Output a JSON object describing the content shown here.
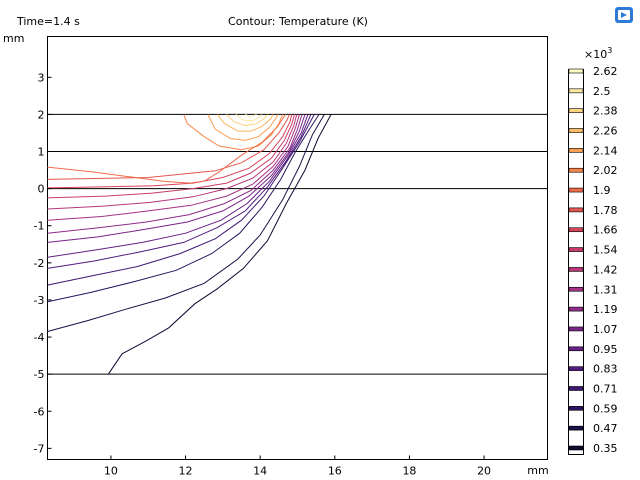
{
  "header": {
    "time_label": "Time=1.4 s",
    "title": "Contour: Temperature (K)"
  },
  "chart_data": {
    "type": "contour",
    "title": "Contour: Temperature (K)",
    "xlabel": "mm",
    "ylabel": "mm",
    "xlim": [
      8.3,
      21.7
    ],
    "ylim": [
      -7.3,
      4.1
    ],
    "x_ticks": [
      "10",
      "12",
      "14",
      "16",
      "18",
      "20"
    ],
    "y_ticks": [
      "3",
      "2",
      "1",
      "0",
      "-1",
      "-2",
      "-3",
      "-4",
      "-5",
      "-6",
      "-7"
    ],
    "boundary_lines_y": [
      2,
      1,
      0,
      -5
    ],
    "colorbar": {
      "exponent_label": "×10",
      "exponent_power": "3",
      "levels": [
        2.62,
        2.5,
        2.38,
        2.26,
        2.14,
        2.02,
        1.9,
        1.78,
        1.66,
        1.54,
        1.42,
        1.31,
        1.19,
        1.07,
        0.95,
        0.83,
        0.71,
        0.59,
        0.47,
        0.35
      ],
      "level_labels": [
        "2.62",
        "2.5",
        "2.38",
        "2.26",
        "2.14",
        "2.02",
        "1.9",
        "1.78",
        "1.66",
        "1.54",
        "1.42",
        "1.31",
        "1.19",
        "1.07",
        "0.95",
        "0.83",
        "0.71",
        "0.59",
        "0.47",
        "0.35"
      ],
      "colors": [
        "#fcfdbf",
        "#fde9a0",
        "#fdd27f",
        "#fcb866",
        "#fb9f52",
        "#f8864a",
        "#f06c4a",
        "#e45751",
        "#d6455a",
        "#c83d68",
        "#b73779",
        "#a43184",
        "#8f2a8a",
        "#7a2489",
        "#661f85",
        "#521b80",
        "#3e1874",
        "#2b1560",
        "#1a1045",
        "#0d0a30"
      ]
    },
    "series": [
      {
        "level": 0.35,
        "points": [
          [
            9.93,
            -5.0
          ],
          [
            10.3,
            -4.45
          ],
          [
            10.95,
            -4.1
          ],
          [
            11.55,
            -3.75
          ],
          [
            12.25,
            -3.1
          ],
          [
            12.85,
            -2.7
          ],
          [
            13.55,
            -2.15
          ],
          [
            14.2,
            -1.4
          ],
          [
            14.7,
            -0.4
          ],
          [
            15.2,
            0.5
          ],
          [
            15.55,
            1.35
          ],
          [
            15.9,
            2.0
          ]
        ]
      },
      {
        "level": 0.47,
        "points": [
          [
            8.3,
            -3.85
          ],
          [
            9.4,
            -3.55
          ],
          [
            10.4,
            -3.25
          ],
          [
            11.45,
            -2.95
          ],
          [
            12.5,
            -2.55
          ],
          [
            13.4,
            -1.9
          ],
          [
            14.0,
            -1.25
          ],
          [
            14.6,
            -0.3
          ],
          [
            15.05,
            0.6
          ],
          [
            15.4,
            1.45
          ],
          [
            15.72,
            2.0
          ]
        ]
      },
      {
        "level": 0.59,
        "points": [
          [
            8.3,
            -3.05
          ],
          [
            9.45,
            -2.8
          ],
          [
            10.65,
            -2.5
          ],
          [
            11.75,
            -2.2
          ],
          [
            12.7,
            -1.75
          ],
          [
            13.45,
            -1.2
          ],
          [
            14.05,
            -0.5
          ],
          [
            14.55,
            0.25
          ],
          [
            14.95,
            1.0
          ],
          [
            15.35,
            1.65
          ],
          [
            15.58,
            2.0
          ]
        ]
      },
      {
        "level": 0.71,
        "points": [
          [
            8.3,
            -2.6
          ],
          [
            9.5,
            -2.35
          ],
          [
            10.7,
            -2.1
          ],
          [
            11.85,
            -1.75
          ],
          [
            12.8,
            -1.35
          ],
          [
            13.5,
            -0.85
          ],
          [
            14.1,
            -0.2
          ],
          [
            14.6,
            0.55
          ],
          [
            15.05,
            1.25
          ],
          [
            15.45,
            2.0
          ]
        ]
      },
      {
        "level": 0.83,
        "points": [
          [
            8.3,
            -2.15
          ],
          [
            9.55,
            -1.95
          ],
          [
            10.8,
            -1.7
          ],
          [
            11.95,
            -1.45
          ],
          [
            12.85,
            -1.05
          ],
          [
            13.6,
            -0.6
          ],
          [
            14.2,
            0.05
          ],
          [
            14.7,
            0.75
          ],
          [
            15.1,
            1.4
          ],
          [
            15.36,
            2.0
          ]
        ]
      },
      {
        "level": 0.95,
        "points": [
          [
            8.3,
            -1.85
          ],
          [
            9.6,
            -1.65
          ],
          [
            10.85,
            -1.45
          ],
          [
            12.0,
            -1.2
          ],
          [
            12.95,
            -0.85
          ],
          [
            13.65,
            -0.4
          ],
          [
            14.25,
            0.2
          ],
          [
            14.75,
            0.9
          ],
          [
            15.1,
            1.5
          ],
          [
            15.28,
            2.0
          ]
        ]
      },
      {
        "level": 1.07,
        "points": [
          [
            8.3,
            -1.45
          ],
          [
            9.65,
            -1.3
          ],
          [
            10.9,
            -1.1
          ],
          [
            12.05,
            -0.9
          ],
          [
            13.0,
            -0.6
          ],
          [
            13.7,
            -0.2
          ],
          [
            14.3,
            0.35
          ],
          [
            14.78,
            1.0
          ],
          [
            15.05,
            1.55
          ],
          [
            15.2,
            2.0
          ]
        ]
      },
      {
        "level": 1.19,
        "points": [
          [
            8.3,
            -1.2
          ],
          [
            9.7,
            -1.05
          ],
          [
            10.95,
            -0.9
          ],
          [
            12.1,
            -0.7
          ],
          [
            13.05,
            -0.4
          ],
          [
            13.75,
            -0.05
          ],
          [
            14.35,
            0.5
          ],
          [
            14.8,
            1.1
          ],
          [
            15.0,
            1.6
          ],
          [
            15.12,
            2.0
          ]
        ]
      },
      {
        "level": 1.31,
        "points": [
          [
            8.3,
            -0.85
          ],
          [
            9.75,
            -0.75
          ],
          [
            11.0,
            -0.6
          ],
          [
            12.15,
            -0.45
          ],
          [
            13.1,
            -0.2
          ],
          [
            13.8,
            0.12
          ],
          [
            14.35,
            0.6
          ],
          [
            14.75,
            1.15
          ],
          [
            14.95,
            1.65
          ],
          [
            15.05,
            2.0
          ]
        ]
      },
      {
        "level": 1.42,
        "points": [
          [
            8.3,
            -0.55
          ],
          [
            9.8,
            -0.47
          ],
          [
            11.05,
            -0.37
          ],
          [
            12.2,
            -0.22
          ],
          [
            13.1,
            0.0
          ],
          [
            13.8,
            0.28
          ],
          [
            14.35,
            0.72
          ],
          [
            14.7,
            1.22
          ],
          [
            14.9,
            1.7
          ],
          [
            14.98,
            2.0
          ]
        ]
      },
      {
        "level": 1.54,
        "points": [
          [
            8.3,
            -0.25
          ],
          [
            9.85,
            -0.2
          ],
          [
            11.1,
            -0.12
          ],
          [
            12.2,
            0.0
          ],
          [
            13.1,
            0.15
          ],
          [
            13.75,
            0.42
          ],
          [
            14.3,
            0.82
          ],
          [
            14.65,
            1.3
          ],
          [
            14.85,
            1.75
          ],
          [
            14.92,
            2.0
          ]
        ]
      },
      {
        "level": 1.66,
        "points": [
          [
            8.3,
            0.02
          ],
          [
            9.9,
            0.05
          ],
          [
            11.15,
            0.08
          ],
          [
            12.2,
            0.15
          ],
          [
            13.0,
            0.3
          ],
          [
            13.7,
            0.55
          ],
          [
            14.25,
            0.95
          ],
          [
            14.6,
            1.4
          ],
          [
            14.8,
            1.8
          ],
          [
            14.85,
            2.0
          ]
        ]
      },
      {
        "level": 1.78,
        "points": [
          [
            8.3,
            0.25
          ],
          [
            9.9,
            0.28
          ],
          [
            11.0,
            0.3
          ],
          [
            12.0,
            0.4
          ],
          [
            12.8,
            0.48
          ],
          [
            13.5,
            0.7
          ],
          [
            14.1,
            1.05
          ],
          [
            14.5,
            1.5
          ],
          [
            14.72,
            1.85
          ],
          [
            14.78,
            2.0
          ]
        ]
      },
      {
        "level": 1.9,
        "points": [
          [
            8.3,
            0.58
          ],
          [
            9.5,
            0.45
          ],
          [
            10.5,
            0.32
          ],
          [
            11.4,
            0.2
          ],
          [
            12.1,
            0.15
          ],
          [
            12.5,
            0.2
          ],
          [
            12.9,
            0.45
          ],
          [
            13.5,
            0.9
          ],
          [
            14.05,
            1.25
          ],
          [
            14.45,
            1.65
          ],
          [
            14.68,
            2.0
          ]
        ]
      },
      {
        "level": 2.02,
        "points": [
          [
            11.95,
            2.0
          ],
          [
            12.05,
            1.75
          ],
          [
            12.5,
            1.4
          ],
          [
            12.9,
            1.15
          ],
          [
            13.5,
            1.05
          ],
          [
            13.95,
            1.15
          ],
          [
            14.3,
            1.45
          ],
          [
            14.5,
            1.75
          ],
          [
            14.6,
            2.0
          ]
        ]
      },
      {
        "level": 2.14,
        "points": [
          [
            12.6,
            2.0
          ],
          [
            12.8,
            1.6
          ],
          [
            13.2,
            1.35
          ],
          [
            13.6,
            1.3
          ],
          [
            13.95,
            1.4
          ],
          [
            14.25,
            1.65
          ],
          [
            14.42,
            1.9
          ],
          [
            14.48,
            2.0
          ]
        ]
      },
      {
        "level": 2.26,
        "points": [
          [
            12.85,
            2.0
          ],
          [
            13.05,
            1.75
          ],
          [
            13.4,
            1.55
          ],
          [
            13.75,
            1.55
          ],
          [
            14.05,
            1.68
          ],
          [
            14.28,
            1.88
          ],
          [
            14.35,
            2.0
          ]
        ]
      },
      {
        "level": 2.38,
        "points": [
          [
            13.1,
            2.0
          ],
          [
            13.3,
            1.8
          ],
          [
            13.6,
            1.7
          ],
          [
            13.9,
            1.75
          ],
          [
            14.1,
            1.88
          ],
          [
            14.2,
            2.0
          ]
        ]
      },
      {
        "level": 2.5,
        "points": [
          [
            13.35,
            2.0
          ],
          [
            13.55,
            1.85
          ],
          [
            13.8,
            1.83
          ],
          [
            13.98,
            1.92
          ],
          [
            14.05,
            2.0
          ]
        ]
      },
      {
        "level": 2.62,
        "points": [
          [
            13.6,
            2.0
          ],
          [
            13.75,
            1.93
          ],
          [
            13.9,
            2.0
          ]
        ]
      }
    ]
  }
}
